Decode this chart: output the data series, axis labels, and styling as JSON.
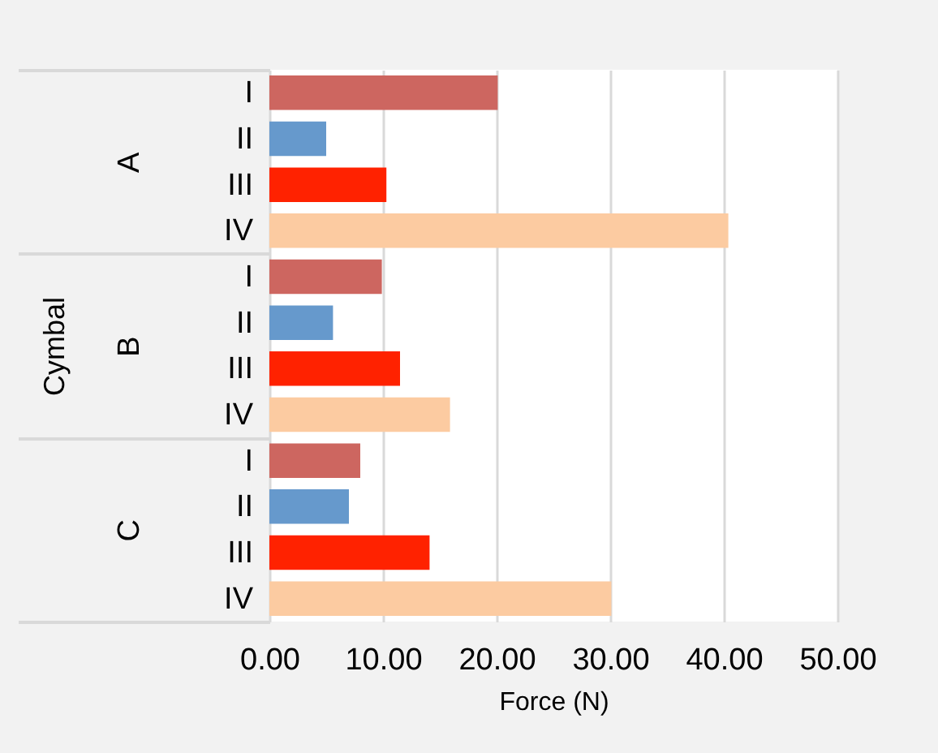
{
  "chart_data": {
    "type": "bar",
    "orientation": "horizontal",
    "ylabel": "Cymbal",
    "xlabel": "Force (N)",
    "categories": [
      "A",
      "B",
      "C"
    ],
    "series": [
      {
        "name": "I",
        "color": "#cd6660",
        "values": [
          20.1,
          9.9,
          8.0
        ]
      },
      {
        "name": "II",
        "color": "#6699cc",
        "values": [
          5.0,
          5.6,
          7.0
        ]
      },
      {
        "name": "III",
        "color": "#ff2200",
        "values": [
          10.3,
          11.5,
          14.1
        ]
      },
      {
        "name": "IV",
        "color": "#fccba1",
        "values": [
          40.4,
          15.9,
          30.1
        ]
      }
    ],
    "xlim": [
      0,
      50
    ],
    "xticks": [
      {
        "value": 0,
        "label": "0.00"
      },
      {
        "value": 10,
        "label": "10.00"
      },
      {
        "value": 20,
        "label": "20.00"
      },
      {
        "value": 30,
        "label": "30.00"
      },
      {
        "value": 40,
        "label": "40.00"
      },
      {
        "value": 50,
        "label": "50.00"
      }
    ],
    "grid": "x",
    "legend": false
  }
}
